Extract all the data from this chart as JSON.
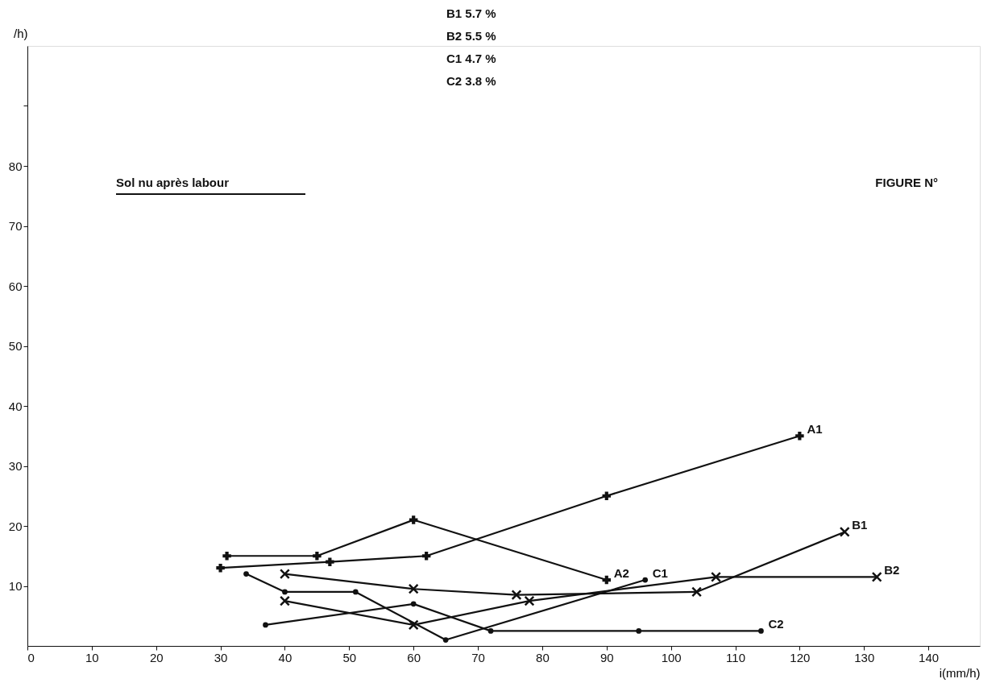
{
  "chart_data": {
    "type": "line",
    "xlabel": "i(mm/h)",
    "ylabel": "/h)",
    "xlim": [
      0,
      148
    ],
    "ylim": [
      0,
      100
    ],
    "xticks": [
      0,
      10,
      20,
      30,
      40,
      50,
      60,
      70,
      80,
      90,
      100,
      110,
      120,
      130,
      140
    ],
    "yticks": [
      {
        "value": 10,
        "label": "10"
      },
      {
        "value": 20,
        "label": "20"
      },
      {
        "value": 30,
        "label": "30"
      },
      {
        "value": 40,
        "label": "40"
      },
      {
        "value": 50,
        "label": "50"
      },
      {
        "value": 60,
        "label": "60"
      },
      {
        "value": 70,
        "label": "70"
      },
      {
        "value": 80,
        "label": "80"
      },
      {
        "value": 90,
        "label": null
      }
    ],
    "line_style": "solid",
    "annotations": [
      "B1 5.7 %",
      "B2 5.5 %",
      "C1 4.7 %",
      "C2 3.8 %",
      "Sol nu après labour",
      "FIGURE N°"
    ],
    "series": [
      {
        "name": "A1",
        "color": "#111111",
        "marker": "cross",
        "x": [
          30,
          47,
          62,
          90,
          120
        ],
        "values": [
          13,
          14,
          15,
          25,
          35
        ]
      },
      {
        "name": "A2",
        "color": "#111111",
        "marker": "cross",
        "x": [
          31,
          45,
          60,
          90
        ],
        "values": [
          15,
          15,
          21,
          11
        ]
      },
      {
        "name": "B1",
        "color": "#111111",
        "marker": "x",
        "x": [
          40,
          60,
          76,
          104,
          127
        ],
        "values": [
          12,
          9.5,
          8.5,
          9,
          19
        ]
      },
      {
        "name": "B2",
        "color": "#111111",
        "marker": "x",
        "x": [
          40,
          60,
          78,
          107,
          132
        ],
        "values": [
          7.5,
          3.5,
          7.5,
          11.5,
          11.5
        ]
      },
      {
        "name": "C1",
        "color": "#111111",
        "marker": "circle",
        "x": [
          34,
          40,
          51,
          65,
          96
        ],
        "values": [
          12,
          9,
          9,
          1,
          11
        ]
      },
      {
        "name": "C2",
        "color": "#111111",
        "marker": "circle",
        "x": [
          37,
          60,
          72,
          95,
          114
        ],
        "values": [
          3.5,
          7,
          2.5,
          2.5,
          2.5
        ]
      }
    ]
  }
}
